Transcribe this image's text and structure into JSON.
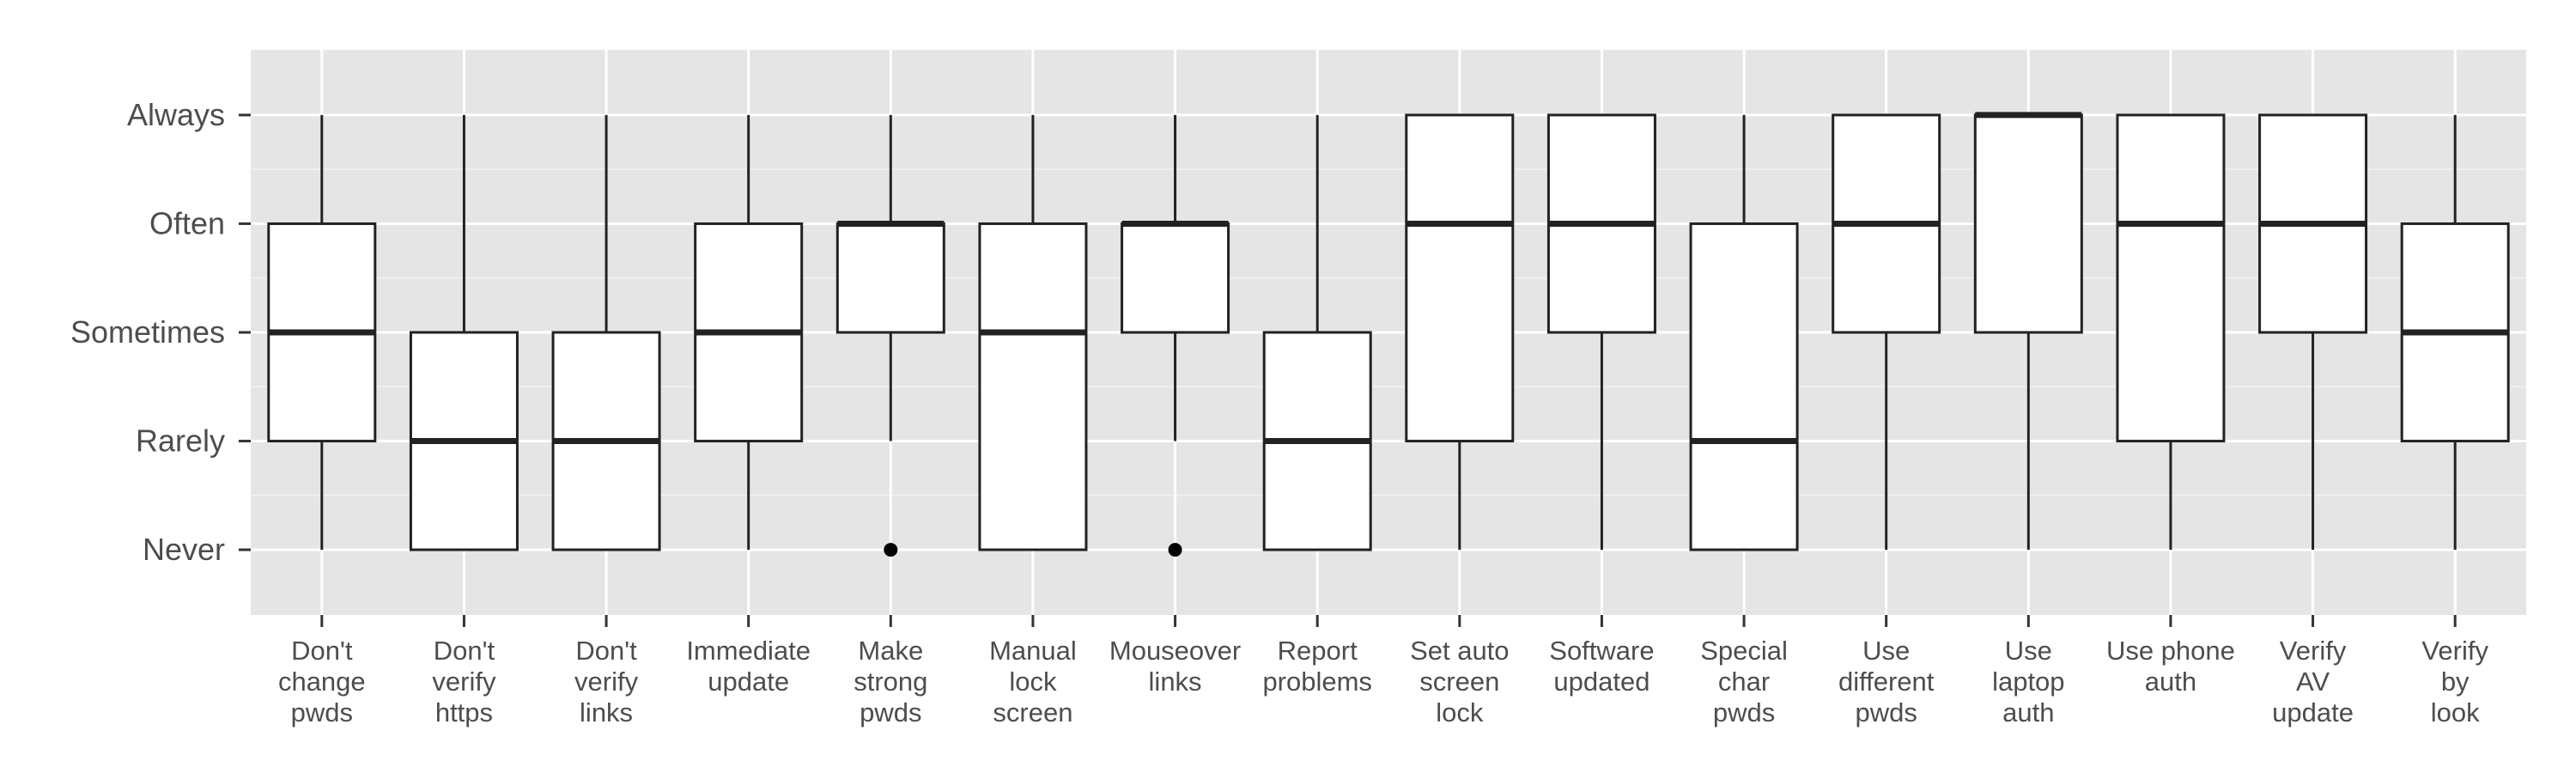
{
  "chart_data": {
    "type": "boxplot",
    "y_levels": [
      "Never",
      "Rarely",
      "Sometimes",
      "Often",
      "Always"
    ],
    "y_values": [
      1,
      2,
      3,
      4,
      5
    ],
    "ylim": [
      0.4,
      5.6
    ],
    "grid": true,
    "panel_background": "#e5e5e5",
    "box_fill": "#ffffff",
    "stroke_color": "#222222",
    "title": "",
    "xlabel": "",
    "ylabel": "",
    "categories": [
      {
        "label": [
          "Don't",
          "change",
          "pwds"
        ],
        "whisker_low": 1,
        "q1": 2,
        "median": 3,
        "q3": 4,
        "whisker_high": 5,
        "outliers": []
      },
      {
        "label": [
          "Don't",
          "verify",
          "https"
        ],
        "whisker_low": 1,
        "q1": 1,
        "median": 2,
        "q3": 3,
        "whisker_high": 5,
        "outliers": []
      },
      {
        "label": [
          "Don't",
          "verify",
          "links"
        ],
        "whisker_low": 1,
        "q1": 1,
        "median": 2,
        "q3": 3,
        "whisker_high": 5,
        "outliers": []
      },
      {
        "label": [
          "Immediate",
          "update"
        ],
        "whisker_low": 1,
        "q1": 2,
        "median": 3,
        "q3": 4,
        "whisker_high": 5,
        "outliers": []
      },
      {
        "label": [
          "Make",
          "strong",
          "pwds"
        ],
        "whisker_low": 2,
        "q1": 3,
        "median": 4,
        "q3": 4,
        "whisker_high": 5,
        "outliers": [
          1
        ]
      },
      {
        "label": [
          "Manual",
          "lock",
          "screen"
        ],
        "whisker_low": 1,
        "q1": 1,
        "median": 3,
        "q3": 4,
        "whisker_high": 5,
        "outliers": []
      },
      {
        "label": [
          "Mouseover",
          "links"
        ],
        "whisker_low": 2,
        "q1": 3,
        "median": 4,
        "q3": 4,
        "whisker_high": 5,
        "outliers": [
          1
        ]
      },
      {
        "label": [
          "Report",
          "problems"
        ],
        "whisker_low": 1,
        "q1": 1,
        "median": 2,
        "q3": 3,
        "whisker_high": 5,
        "outliers": []
      },
      {
        "label": [
          "Set auto",
          "screen",
          "lock"
        ],
        "whisker_low": 1,
        "q1": 2,
        "median": 4,
        "q3": 5,
        "whisker_high": 5,
        "outliers": []
      },
      {
        "label": [
          "Software",
          "updated"
        ],
        "whisker_low": 1,
        "q1": 3,
        "median": 4,
        "q3": 5,
        "whisker_high": 5,
        "outliers": []
      },
      {
        "label": [
          "Special",
          "char",
          "pwds"
        ],
        "whisker_low": 1,
        "q1": 1,
        "median": 2,
        "q3": 4,
        "whisker_high": 5,
        "outliers": []
      },
      {
        "label": [
          "Use",
          "different",
          "pwds"
        ],
        "whisker_low": 1,
        "q1": 3,
        "median": 4,
        "q3": 5,
        "whisker_high": 5,
        "outliers": []
      },
      {
        "label": [
          "Use",
          "laptop",
          "auth"
        ],
        "whisker_low": 1,
        "q1": 3,
        "median": 5,
        "q3": 5,
        "whisker_high": 5,
        "outliers": []
      },
      {
        "label": [
          "Use phone",
          "auth"
        ],
        "whisker_low": 1,
        "q1": 2,
        "median": 4,
        "q3": 5,
        "whisker_high": 5,
        "outliers": []
      },
      {
        "label": [
          "Verify",
          "AV",
          "update"
        ],
        "whisker_low": 1,
        "q1": 3,
        "median": 4,
        "q3": 5,
        "whisker_high": 5,
        "outliers": []
      },
      {
        "label": [
          "Verify",
          "by",
          "look"
        ],
        "whisker_low": 1,
        "q1": 2,
        "median": 3,
        "q3": 4,
        "whisker_high": 5,
        "outliers": []
      }
    ]
  }
}
